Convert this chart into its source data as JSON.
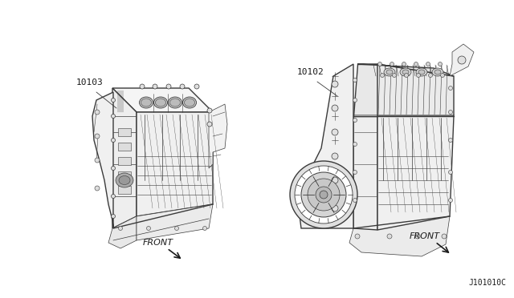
{
  "background_color": "#ffffff",
  "fig_width": 6.4,
  "fig_height": 3.72,
  "dpi": 100,
  "label_left_part": "10103",
  "label_right_part": "10102",
  "label_front_left": "FRONT",
  "label_front_right": "FRONT",
  "label_catalog": "J101010C",
  "line_color": "#3a3a3a",
  "text_color": "#1a1a1a",
  "lw_main": 1.0,
  "lw_detail": 0.5,
  "lw_fine": 0.3
}
